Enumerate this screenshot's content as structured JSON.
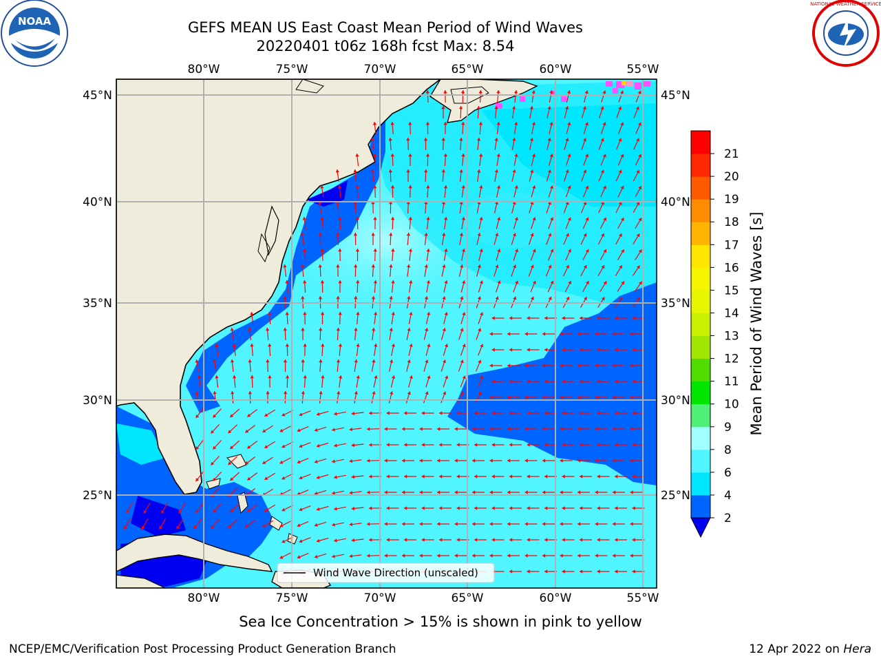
{
  "title": {
    "line1": "GEFS MEAN US East Coast Mean Period of Wind Waves",
    "line2": "20220401 t06z 168h fcst   Max: 8.54"
  },
  "logos": {
    "left": "NOAA",
    "right": "NATIONAL WEATHER SERVICE"
  },
  "map": {
    "lon_labels": [
      "80°W",
      "75°W",
      "70°W",
      "65°W",
      "60°W",
      "55°W"
    ],
    "lat_labels": [
      "45°N",
      "40°N",
      "35°N",
      "30°N",
      "25°N"
    ],
    "legend_label": "Wind Wave Direction (unscaled)",
    "colors": {
      "land": "#efecdc",
      "arrows": "#ff0000",
      "coast": "#000000",
      "grid": "#b0b0b0"
    }
  },
  "colorbar": {
    "label": "Mean Period of Wind Waves [s]",
    "ticks": [
      "2",
      "4",
      "6",
      "8",
      "9",
      "10",
      "11",
      "12",
      "13",
      "14",
      "15",
      "16",
      "17",
      "18",
      "19",
      "20",
      "21"
    ],
    "colors": [
      "#0064ff",
      "#00e6ff",
      "#50f5ff",
      "#a0ffff",
      "#50f078",
      "#00e600",
      "#50dc00",
      "#a0e600",
      "#c8f000",
      "#e6f500",
      "#f5f500",
      "#ffe600",
      "#ffb400",
      "#ff8c00",
      "#ff5a00",
      "#ff2800",
      "#ff0000"
    ],
    "under_color": "#0000f0"
  },
  "sea_ice_note": "Sea Ice Concentration > 15% is shown in pink to yellow",
  "footer": {
    "credit": "NCEP/EMC/Verification Post Processing Product Generation Branch",
    "date": "12 Apr 2022 on",
    "machine": "Hera"
  }
}
